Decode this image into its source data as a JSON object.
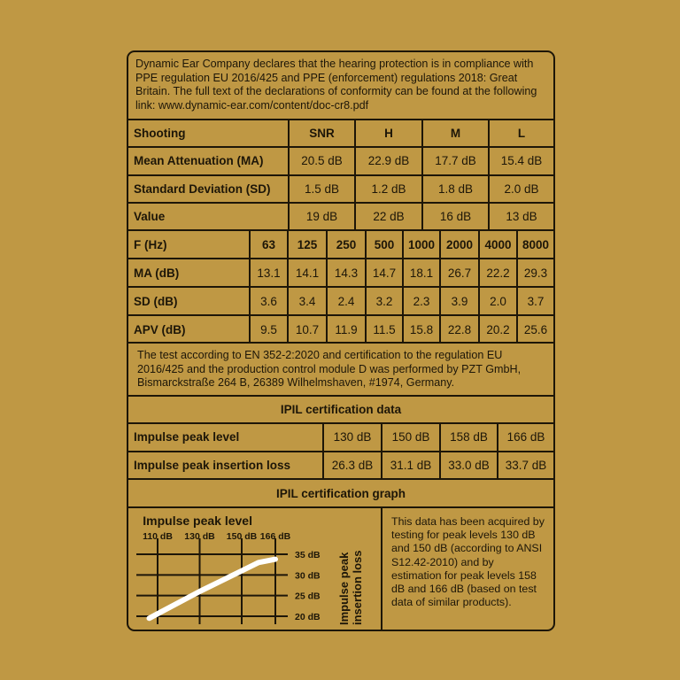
{
  "intro": "Dynamic Ear Company declares that the hearing protection is in compliance with PPE regulation EU 2016/425 and PPE (enforcement) regulations 2018: Great Britain. The full text of the declarations of conformity can be found at the following link:  www.dynamic-ear.com/content/doc-cr8.pdf",
  "attenuation": {
    "header": [
      "Shooting",
      "SNR",
      "H",
      "M",
      "L"
    ],
    "rows": [
      [
        "Mean Attenuation (MA)",
        "20.5 dB",
        "22.9 dB",
        "17.7 dB",
        "15.4 dB"
      ],
      [
        "Standard Deviation (SD)",
        "1.5 dB",
        "1.2 dB",
        "1.8 dB",
        "2.0 dB"
      ],
      [
        "Value",
        "19 dB",
        "22 dB",
        "16 dB",
        "13 dB"
      ]
    ]
  },
  "frequency": {
    "header": [
      "F (Hz)",
      "63",
      "125",
      "250",
      "500",
      "1000",
      "2000",
      "4000",
      "8000"
    ],
    "rows": [
      [
        "MA (dB)",
        "13.1",
        "14.1",
        "14.3",
        "14.7",
        "18.1",
        "26.7",
        "22.2",
        "29.3"
      ],
      [
        "SD (dB)",
        "3.6",
        "3.4",
        "2.4",
        "3.2",
        "2.3",
        "3.9",
        "2.0",
        "3.7"
      ],
      [
        "APV (dB)",
        "9.5",
        "10.7",
        "11.9",
        "11.5",
        "15.8",
        "22.8",
        "20.2",
        "25.6"
      ]
    ]
  },
  "test_text": "The test according to EN 352-2:2020 and certification to the regulation EU 2016/425 and the production control module D was performed by PZT GmbH, Bismarckstraße 264 B, 26389 Wilhelmshaven, #1974, Germany.",
  "ipil": {
    "title": "IPIL certification data",
    "rows": [
      [
        "Impulse peak level",
        "130 dB",
        "150 dB",
        "158 dB",
        "166 dB"
      ],
      [
        "Impulse peak insertion loss",
        "26.3 dB",
        "31.1 dB",
        "33.0 dB",
        "33.7 dB"
      ]
    ]
  },
  "graph_title": "IPIL certification graph",
  "graph_note": "This data has been acquired by testing for peak levels 130 dB and 150 dB (according to ANSI S12.42-2010) and by estimation for peak levels 158 dB and 166 dB (based on test data of similar products).",
  "chart_data": {
    "type": "line",
    "title": "Impulse peak level",
    "xlabel": "Impulse peak level",
    "ylabel": "Impulse peak insertion loss",
    "x_ticks": [
      "110 dB",
      "130 dB",
      "150 dB",
      "166 dB"
    ],
    "x_tick_values": [
      110,
      130,
      150,
      166
    ],
    "y_ticks": [
      "35 dB",
      "30 dB",
      "25 dB",
      "20 dB"
    ],
    "y_tick_values": [
      35,
      30,
      25,
      20
    ],
    "grid": true,
    "line_color": "#ffffff",
    "series": [
      {
        "x": [
          106,
          110,
          130,
          150,
          158,
          166
        ],
        "y": [
          19.5,
          20.6,
          26,
          31,
          33,
          33.8
        ]
      }
    ]
  }
}
